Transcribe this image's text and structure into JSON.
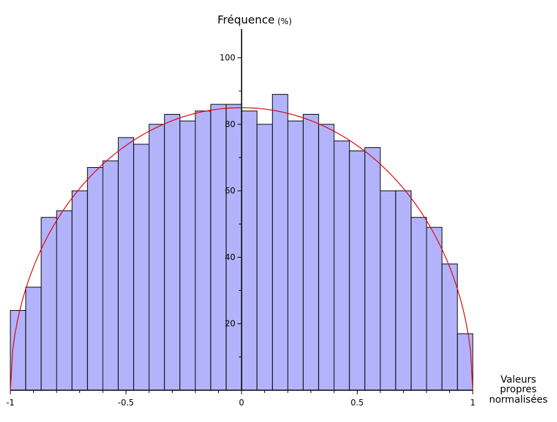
{
  "chart_data": {
    "type": "bar",
    "title": "",
    "ylabel": "Fréquence",
    "ylabel_unit": "(%)",
    "xlabel_lines": [
      "Valeurs",
      "propres",
      "normalisées"
    ],
    "xlim": [
      -1,
      1
    ],
    "ylim": [
      0,
      107
    ],
    "x_ticks": [
      -1,
      -0.5,
      0,
      0.5,
      1
    ],
    "x_tick_labels": [
      "-1",
      "-0.5",
      "0",
      "0.5",
      "1"
    ],
    "y_ticks": [
      20,
      40,
      60,
      80,
      100
    ],
    "y_tick_labels": [
      "20",
      "40",
      "60",
      "80",
      "100"
    ],
    "bin_edges": [
      -1,
      -0.9333,
      -0.8667,
      -0.8,
      -0.7333,
      -0.6667,
      -0.6,
      -0.5333,
      -0.4667,
      -0.4,
      -0.3333,
      -0.2667,
      -0.2,
      -0.1333,
      -0.0667,
      0,
      0.0667,
      0.1333,
      0.2,
      0.2667,
      0.3333,
      0.4,
      0.4667,
      0.5333,
      0.6,
      0.6667,
      0.7333,
      0.8,
      0.8667,
      0.9333,
      1
    ],
    "values": [
      24,
      31,
      52,
      54,
      60,
      67,
      69,
      76,
      74,
      80,
      83,
      81,
      84,
      86,
      86,
      84,
      80,
      89,
      81,
      83,
      80,
      75,
      72,
      73,
      60,
      60,
      52,
      49,
      38,
      17
    ],
    "curve": {
      "type": "semicircle",
      "peak": 85,
      "color": "#e00000"
    },
    "bar_color": "#b3b3fb",
    "grid": false
  }
}
